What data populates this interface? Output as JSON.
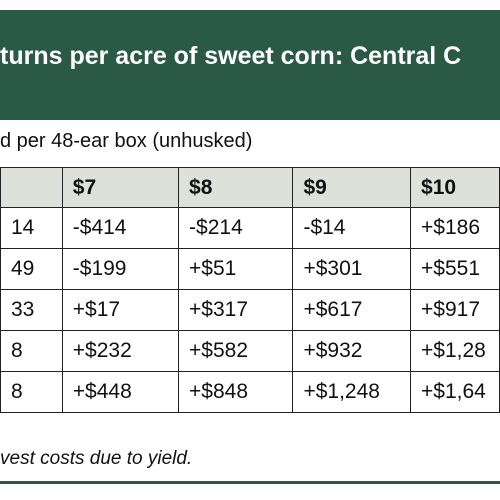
{
  "title": "turns per acre of sweet corn: Central C",
  "subheading": "d per 48-ear box (unhusked)",
  "table": {
    "headers": [
      "",
      "$7",
      "$8",
      "$9",
      "$10"
    ],
    "rows": [
      [
        "14",
        "-$414",
        "-$214",
        "-$14",
        "+$186"
      ],
      [
        "49",
        "-$199",
        "+$51",
        "+$301",
        "+$551"
      ],
      [
        "33",
        "+$17",
        "+$317",
        "+$617",
        "+$917"
      ],
      [
        "8",
        "+$232",
        "+$582",
        "+$932",
        "+$1,28"
      ],
      [
        "8",
        "+$448",
        "+$848",
        "+$1,248",
        "+$1,64"
      ]
    ]
  },
  "footnote": "vest costs due to yield.",
  "colors": {
    "header_band": "#2a5a46",
    "table_header_bg": "#dde1d9"
  }
}
